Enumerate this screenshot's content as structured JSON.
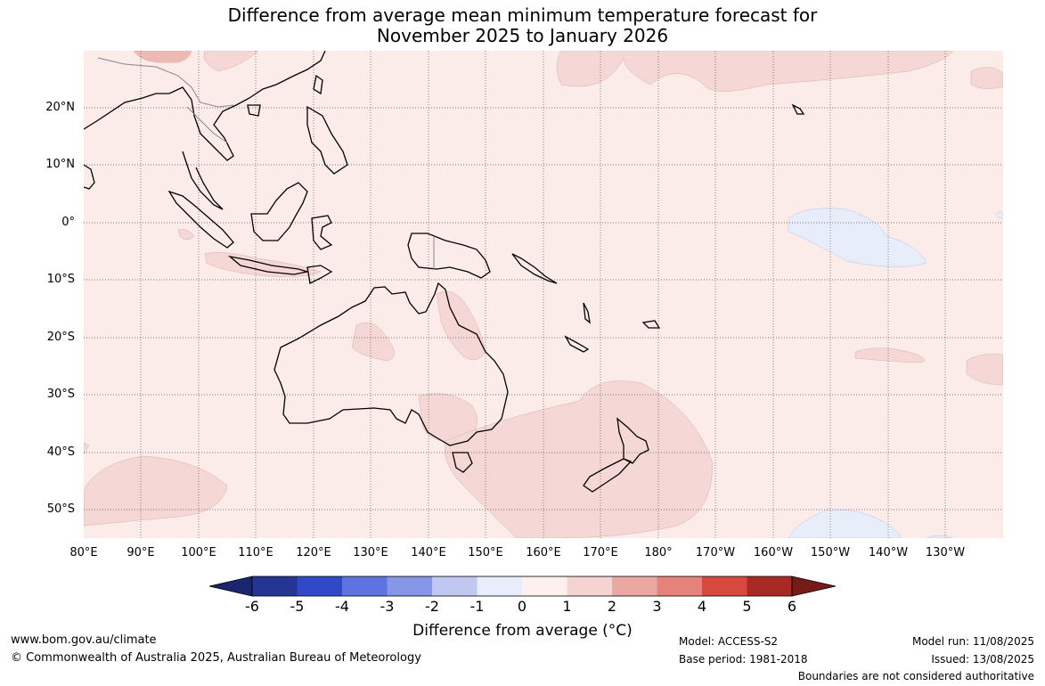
{
  "title": {
    "line1": "Difference from average mean minimum temperature forecast for",
    "line2": "November 2025 to January 2026"
  },
  "map": {
    "lat_labels": [
      "20°N",
      "10°N",
      "0°",
      "10°S",
      "20°S",
      "30°S",
      "40°S",
      "50°S"
    ],
    "lon_labels": [
      "80°E",
      "90°E",
      "100°E",
      "110°E",
      "120°E",
      "130°E",
      "140°E",
      "150°E",
      "160°E",
      "170°E",
      "180°",
      "170°W",
      "160°W",
      "150°W",
      "140°W",
      "130°W"
    ],
    "base_color": "#fbebe9",
    "warm_patch_color": "#f5d8d5",
    "cool_patch_color": "#e8edfa"
  },
  "colorbar": {
    "ticks": [
      "-6",
      "-5",
      "-4",
      "-3",
      "-2",
      "-1",
      "0",
      "1",
      "2",
      "3",
      "4",
      "5",
      "6"
    ],
    "colors": [
      "#253593",
      "#2f49c8",
      "#5d74e0",
      "#8597e6",
      "#c0c8f2",
      "#e9ecfb",
      "#fdf0ef",
      "#f5d3d0",
      "#eba8a2",
      "#e5837b",
      "#d7493e",
      "#a92a24"
    ],
    "under_color": "#1a2670",
    "over_color": "#731c18",
    "label": "Difference from average (°C)"
  },
  "footer": {
    "url": "www.bom.gov.au/climate",
    "copyright": "© Commonwealth of Australia 2025, Australian Bureau of Meteorology",
    "model": "Model: ACCESS-S2",
    "base_period": "Base period: 1981-2018",
    "model_run": "Model run: 11/08/2025",
    "issued": "Issued: 13/08/2025",
    "disclaimer": "Boundaries are not considered authoritative"
  }
}
